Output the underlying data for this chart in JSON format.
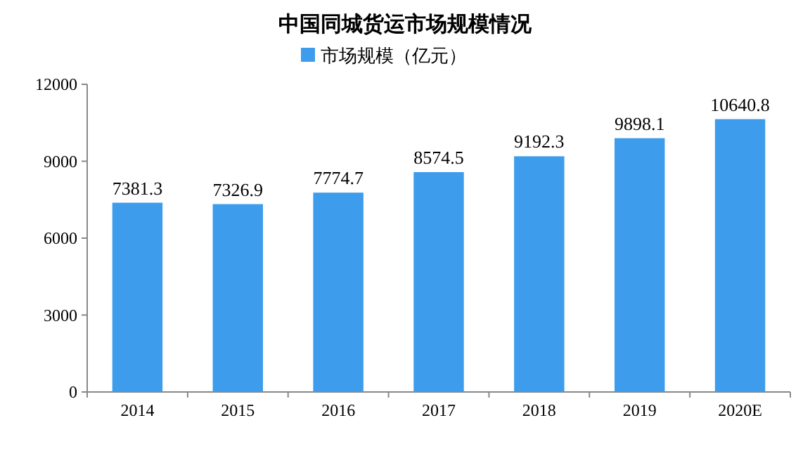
{
  "chart_data": {
    "type": "bar",
    "title": "中国同城货运市场规模情况",
    "categories": [
      "2014",
      "2015",
      "2016",
      "2017",
      "2018",
      "2019",
      "2020E"
    ],
    "series": [
      {
        "name": "市场规模（亿元）",
        "color": "#3d9cec",
        "values": [
          7381.3,
          7326.9,
          7774.7,
          8574.5,
          9192.3,
          9898.1,
          10640.8
        ]
      }
    ],
    "ylim": [
      0,
      12000
    ],
    "yticks": [
      0,
      3000,
      6000,
      9000,
      12000
    ],
    "data_labels": true,
    "legend": "top"
  }
}
